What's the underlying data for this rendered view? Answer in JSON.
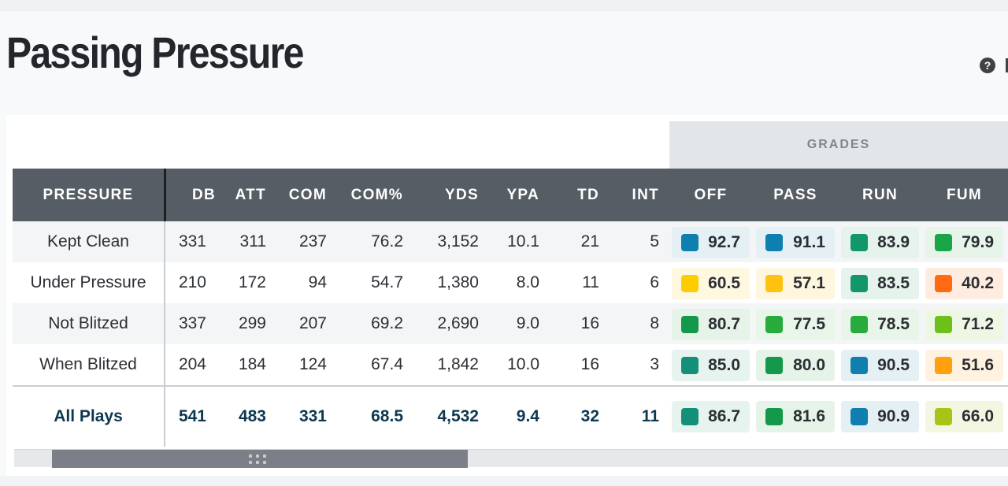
{
  "page": {
    "title": "Passing Pressure",
    "help_icon": "?"
  },
  "table": {
    "group_header": "GRADES",
    "columns": [
      "PRESSURE",
      "DB",
      "ATT",
      "COM",
      "COM%",
      "YDS",
      "YPA",
      "TD",
      "INT",
      "OFF",
      "PASS",
      "RUN",
      "FUM"
    ],
    "rows": [
      {
        "label": "Kept Clean",
        "stats": [
          "331",
          "311",
          "237",
          "76.2",
          "3,152",
          "10.1",
          "21",
          "5"
        ],
        "grades": [
          {
            "value": "92.7",
            "color": "#0f7faf",
            "bg": "#e5f0f5"
          },
          {
            "value": "91.1",
            "color": "#0f7faf",
            "bg": "#e5f0f5"
          },
          {
            "value": "83.9",
            "color": "#14966b",
            "bg": "#e6f3ec"
          },
          {
            "value": "79.9",
            "color": "#1aa548",
            "bg": "#e7f4e9"
          }
        ]
      },
      {
        "label": "Under Pressure",
        "stats": [
          "210",
          "172",
          "94",
          "54.7",
          "1,380",
          "8.0",
          "11",
          "6"
        ],
        "grades": [
          {
            "value": "60.5",
            "color": "#ffcc00",
            "bg": "#fff8e0"
          },
          {
            "value": "57.1",
            "color": "#ffc20e",
            "bg": "#fff6df"
          },
          {
            "value": "83.5",
            "color": "#14966b",
            "bg": "#e6f3ec"
          },
          {
            "value": "40.2",
            "color": "#ff6a13",
            "bg": "#ffece1"
          }
        ]
      },
      {
        "label": "Not Blitzed",
        "stats": [
          "337",
          "299",
          "207",
          "69.2",
          "2,690",
          "9.0",
          "16",
          "8"
        ],
        "grades": [
          {
            "value": "80.7",
            "color": "#14984b",
            "bg": "#e6f3e9"
          },
          {
            "value": "77.5",
            "color": "#26ab3c",
            "bg": "#e8f5e9"
          },
          {
            "value": "78.5",
            "color": "#26ab3c",
            "bg": "#e8f5e9"
          },
          {
            "value": "71.2",
            "color": "#6cc01a",
            "bg": "#eef7e4"
          }
        ]
      },
      {
        "label": "When Blitzed",
        "stats": [
          "204",
          "184",
          "124",
          "67.4",
          "1,842",
          "10.0",
          "16",
          "3"
        ],
        "grades": [
          {
            "value": "85.0",
            "color": "#14907a",
            "bg": "#e6f3ef"
          },
          {
            "value": "80.0",
            "color": "#14984b",
            "bg": "#e6f3e9"
          },
          {
            "value": "90.5",
            "color": "#0f7faf",
            "bg": "#e5f0f5"
          },
          {
            "value": "51.6",
            "color": "#ffa10e",
            "bg": "#fff2e0"
          }
        ]
      }
    ],
    "total": {
      "label": "All Plays",
      "stats": [
        "541",
        "483",
        "331",
        "68.5",
        "4,532",
        "9.4",
        "32",
        "11"
      ],
      "grades": [
        {
          "value": "86.7",
          "color": "#14907a",
          "bg": "#e6f3ef"
        },
        {
          "value": "81.6",
          "color": "#14984b",
          "bg": "#e6f3e9"
        },
        {
          "value": "90.9",
          "color": "#0f7faf",
          "bg": "#e5f0f5"
        },
        {
          "value": "66.0",
          "color": "#a6c516",
          "bg": "#f3f7e2"
        }
      ]
    }
  }
}
